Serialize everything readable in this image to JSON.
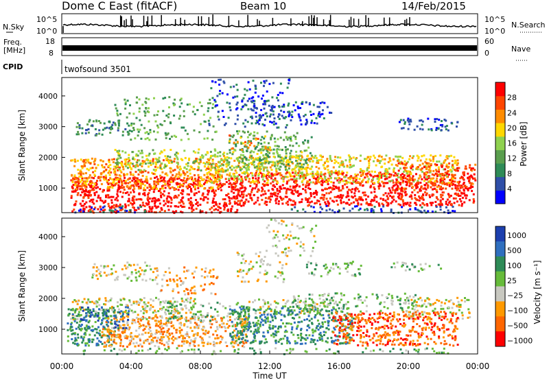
{
  "header": {
    "station": "Dome C East (fitACF)",
    "beam": "Beam 10",
    "date": "14/Feb/2015"
  },
  "nsky_panel": {
    "left_label": "N.Sky",
    "right_label": "N.Search",
    "left_ticks": [
      "10^5",
      "10^0"
    ],
    "right_ticks": [
      "10^5",
      "10^0"
    ]
  },
  "freq_panel": {
    "left_label_1": "Freq.",
    "left_label_2": "[MHz]",
    "left_ticks": [
      "18",
      "8"
    ],
    "right_label": "Nave",
    "right_ticks": [
      "60",
      "0"
    ]
  },
  "cpid_panel": {
    "label": "CPID",
    "value": "twofsound 3501"
  },
  "colors": {
    "power": [
      "#0000ff",
      "#2f4fa8",
      "#2e8b57",
      "#5a9e4e",
      "#8fd14f",
      "#ffd700",
      "#ff8c00",
      "#ff4500",
      "#ff0000"
    ],
    "velocity": [
      "#1c3fae",
      "#2f6fbf",
      "#2e8b57",
      "#66bb3a",
      "#c8c8c0",
      "#ff9900",
      "#ff6600",
      "#ff0000"
    ]
  },
  "chart_data": [
    {
      "type": "heatmap",
      "name": "power",
      "ylabel": "Slant Range [km]",
      "yticks": [
        "1000",
        "2000",
        "3000",
        "4000"
      ],
      "ylim": [
        200,
        4600
      ],
      "colorbar_label": "Power [dB]",
      "colorbar_ticks": [
        "4",
        "8",
        "12",
        "16",
        "20",
        "24",
        "28"
      ],
      "zlim": [
        0,
        32
      ]
    },
    {
      "type": "heatmap",
      "name": "velocity",
      "ylabel": "Slant Range [km]",
      "yticks": [
        "1000",
        "2000",
        "3000",
        "4000"
      ],
      "ylim": [
        200,
        4600
      ],
      "colorbar_label": "Velocity [m s⁻¹]",
      "colorbar_ticks": [
        "1000",
        "500",
        "100",
        "25",
        "−25",
        "−100",
        "−500",
        "−1000"
      ]
    }
  ],
  "x_axis": {
    "label": "Time UT",
    "ticks": [
      "00:00",
      "04:00",
      "08:00",
      "12:00",
      "16:00",
      "20:00",
      "00:00"
    ]
  }
}
